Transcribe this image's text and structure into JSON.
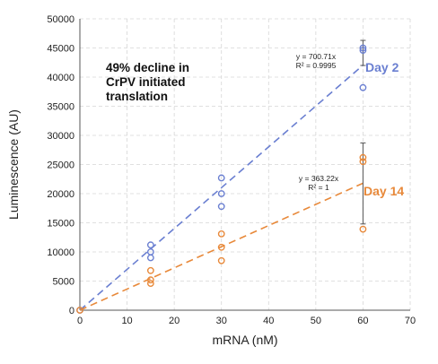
{
  "chart_data": {
    "type": "scatter",
    "xlabel": "mRNA (nM)",
    "ylabel": "Luminescence (AU)",
    "xlim": [
      0,
      70
    ],
    "ylim": [
      0,
      50000
    ],
    "x_ticks": [
      0,
      10,
      20,
      30,
      40,
      50,
      60,
      70
    ],
    "y_ticks": [
      0,
      5000,
      10000,
      15000,
      20000,
      25000,
      30000,
      35000,
      40000,
      45000,
      50000
    ],
    "grid": "dashed",
    "series": [
      {
        "name": "Day 2",
        "color": "#6a7fd1",
        "points": [
          {
            "x": 0,
            "y": 0
          },
          {
            "x": 15,
            "y": 11200
          },
          {
            "x": 15,
            "y": 10000
          },
          {
            "x": 15,
            "y": 9000
          },
          {
            "x": 30,
            "y": 22700
          },
          {
            "x": 30,
            "y": 20000
          },
          {
            "x": 30,
            "y": 17800
          },
          {
            "x": 60,
            "y": 45000
          },
          {
            "x": 60,
            "y": 44600
          },
          {
            "x": 60,
            "y": 38200
          }
        ],
        "error_bars": [
          {
            "x": 60,
            "low": 42000,
            "high": 46300
          }
        ],
        "trendline": {
          "slope": 700.71,
          "equation": "y = 700.71x",
          "r2": "R² = 0.9995"
        }
      },
      {
        "name": "Day 14",
        "color": "#e8893a",
        "points": [
          {
            "x": 0,
            "y": 0
          },
          {
            "x": 15,
            "y": 6800
          },
          {
            "x": 15,
            "y": 5200
          },
          {
            "x": 15,
            "y": 4600
          },
          {
            "x": 30,
            "y": 13100
          },
          {
            "x": 30,
            "y": 10800
          },
          {
            "x": 30,
            "y": 8500
          },
          {
            "x": 60,
            "y": 26200
          },
          {
            "x": 60,
            "y": 25500
          },
          {
            "x": 60,
            "y": 13900
          }
        ],
        "error_bars": [
          {
            "x": 60,
            "low": 14800,
            "high": 28700
          }
        ],
        "trendline": {
          "slope": 363.22,
          "equation": "y = 363.22x",
          "r2": "R² = 1"
        }
      }
    ],
    "annotation": [
      "49% decline in",
      "CrPV initiated",
      "translation"
    ]
  }
}
